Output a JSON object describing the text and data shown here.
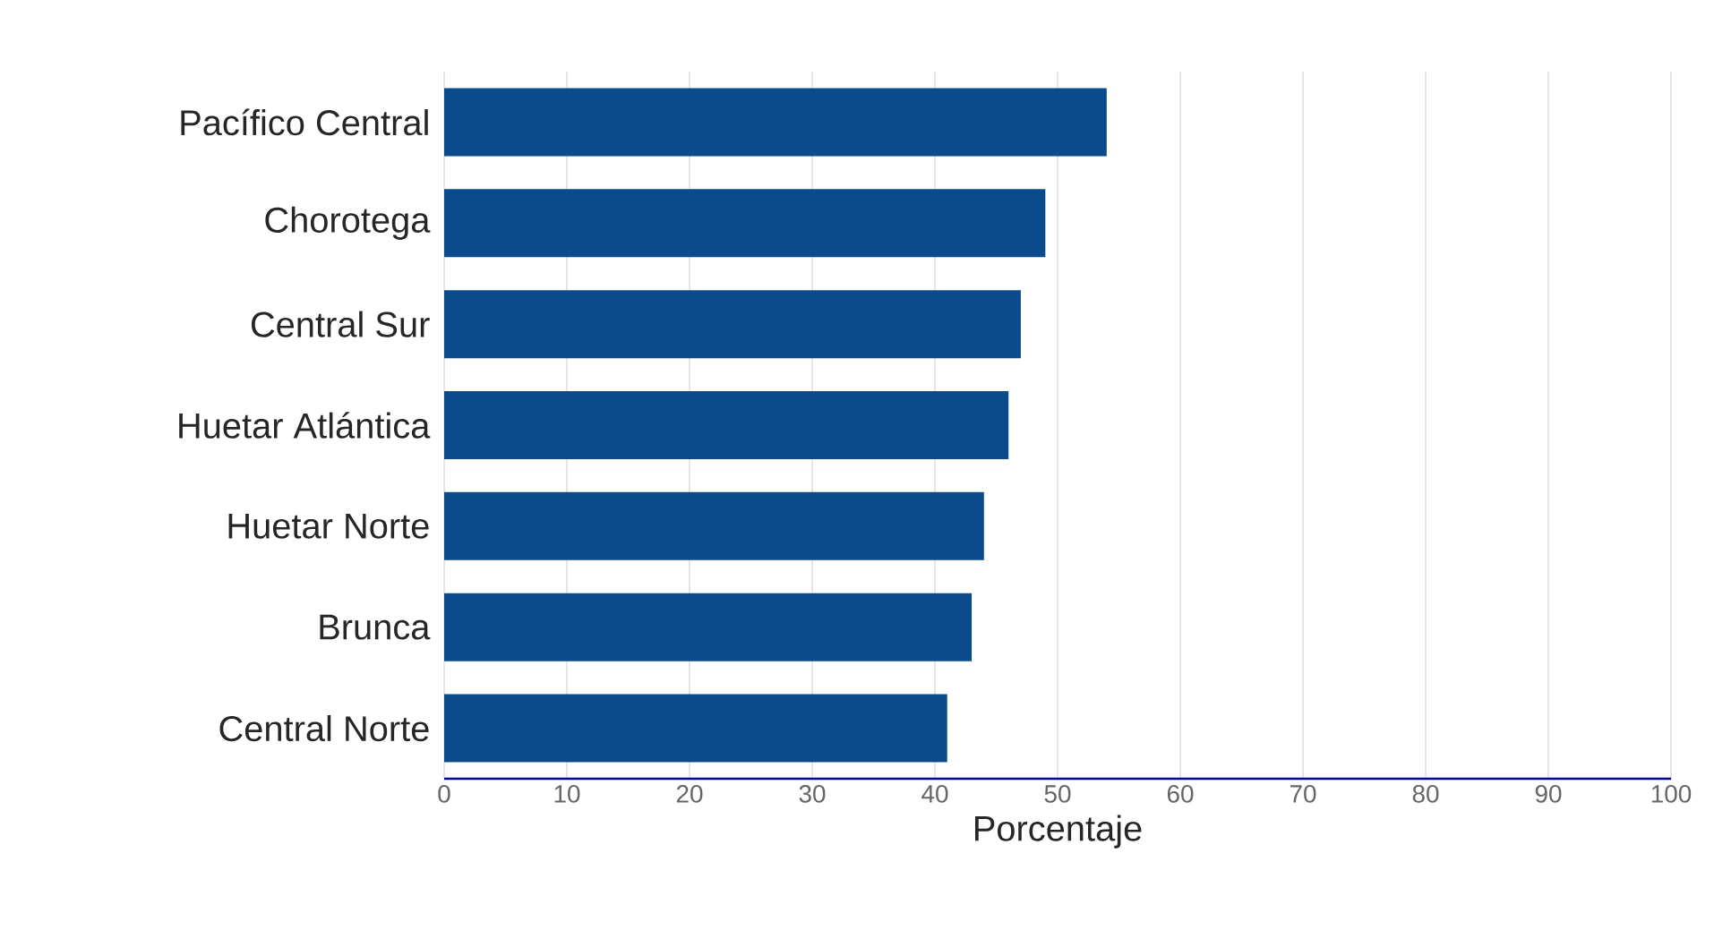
{
  "chart_data": {
    "type": "bar",
    "orientation": "horizontal",
    "xlabel": "Porcentaje",
    "categories": [
      "Pacífico Central",
      "Chorotega",
      "Central Sur",
      "Huetar Atlántica",
      "Huetar Norte",
      "Brunca",
      "Central Norte"
    ],
    "values": [
      54,
      49,
      47,
      46,
      44,
      43,
      41
    ],
    "color": "#0b4a8b",
    "xlim": [
      0,
      100
    ],
    "xticks": [
      0,
      10,
      20,
      30,
      40,
      50,
      60,
      70,
      80,
      90,
      100
    ],
    "grid": "x"
  }
}
